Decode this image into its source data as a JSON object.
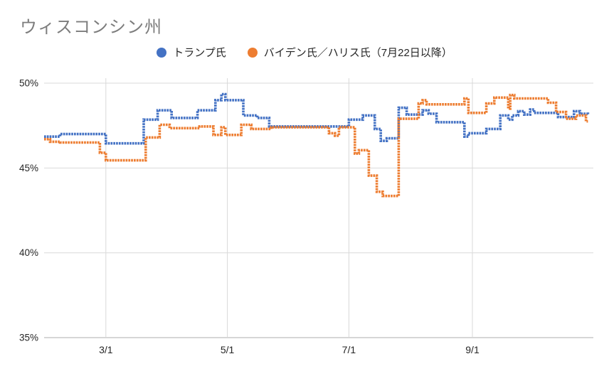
{
  "chart_data": {
    "type": "line",
    "title": "ウィスコンシン州",
    "subtitle": "",
    "xlabel": "",
    "ylabel": "",
    "unit": "%",
    "grid": true,
    "legend_position": "top-center",
    "x_axis": {
      "ticks": [
        {
          "label": "3/1",
          "day": 31
        },
        {
          "label": "5/1",
          "day": 92
        },
        {
          "label": "7/1",
          "day": 153
        },
        {
          "label": "9/1",
          "day": 215
        }
      ],
      "domain_days": [
        0,
        273
      ],
      "note": "day 0 = approx 1/30, day 273 = approx 10/29"
    },
    "y_axis": {
      "ticks": [
        {
          "label": "50%",
          "value": 50
        },
        {
          "label": "45%",
          "value": 45
        },
        {
          "label": "40%",
          "value": 40
        },
        {
          "label": "35%",
          "value": 35
        }
      ],
      "range": [
        35,
        50
      ]
    },
    "series": [
      {
        "name": "トランプ氏",
        "color": "#4472C4",
        "step": "after",
        "points": [
          [
            0,
            46.85
          ],
          [
            8,
            47.0
          ],
          [
            31,
            46.45
          ],
          [
            50,
            47.85
          ],
          [
            57,
            48.4
          ],
          [
            64,
            47.95
          ],
          [
            77,
            48.4
          ],
          [
            86,
            49.0
          ],
          [
            89,
            49.35
          ],
          [
            91,
            49.0
          ],
          [
            100,
            48.1
          ],
          [
            107,
            47.95
          ],
          [
            113,
            47.45
          ],
          [
            153,
            47.85
          ],
          [
            160,
            48.1
          ],
          [
            166,
            47.3
          ],
          [
            169,
            46.6
          ],
          [
            172,
            46.75
          ],
          [
            178,
            48.55
          ],
          [
            182,
            48.15
          ],
          [
            190,
            48.4
          ],
          [
            193,
            48.2
          ],
          [
            197,
            47.7
          ],
          [
            211,
            46.85
          ],
          [
            213,
            47.05
          ],
          [
            222,
            47.3
          ],
          [
            229,
            48.1
          ],
          [
            233,
            47.85
          ],
          [
            235,
            48.1
          ],
          [
            238,
            48.35
          ],
          [
            241,
            48.15
          ],
          [
            244,
            48.45
          ],
          [
            246,
            48.25
          ],
          [
            258,
            48.0
          ],
          [
            266,
            48.35
          ],
          [
            269,
            48.2
          ],
          [
            273,
            48.15
          ]
        ]
      },
      {
        "name": "バイデン氏／ハリス氏（7月22日以降）",
        "color": "#ED7D31",
        "step": "after",
        "points": [
          [
            0,
            46.7
          ],
          [
            3,
            46.55
          ],
          [
            8,
            46.5
          ],
          [
            28,
            45.9
          ],
          [
            31,
            45.45
          ],
          [
            51,
            46.8
          ],
          [
            58,
            47.55
          ],
          [
            63,
            47.35
          ],
          [
            78,
            47.45
          ],
          [
            85,
            46.95
          ],
          [
            89,
            47.4
          ],
          [
            91,
            46.95
          ],
          [
            99,
            47.55
          ],
          [
            104,
            47.3
          ],
          [
            114,
            47.4
          ],
          [
            143,
            47.05
          ],
          [
            146,
            46.9
          ],
          [
            148,
            47.4
          ],
          [
            156,
            45.85
          ],
          [
            158,
            46.05
          ],
          [
            163,
            44.55
          ],
          [
            167,
            43.6
          ],
          [
            170,
            43.35
          ],
          [
            178,
            47.9
          ],
          [
            188,
            48.8
          ],
          [
            190,
            49.0
          ],
          [
            192,
            48.75
          ],
          [
            211,
            49.1
          ],
          [
            213,
            48.25
          ],
          [
            222,
            48.8
          ],
          [
            226,
            49.15
          ],
          [
            233,
            48.5
          ],
          [
            234,
            49.3
          ],
          [
            236,
            49.1
          ],
          [
            253,
            48.85
          ],
          [
            257,
            48.3
          ],
          [
            262,
            47.9
          ],
          [
            267,
            48.1
          ],
          [
            272,
            47.75
          ],
          [
            273,
            47.75
          ]
        ]
      }
    ],
    "colors": {
      "grid": "#d9d9d9",
      "axis_line": "#d6d6d6",
      "title_text": "#7d7d7d",
      "tick_text": "#262626"
    }
  }
}
